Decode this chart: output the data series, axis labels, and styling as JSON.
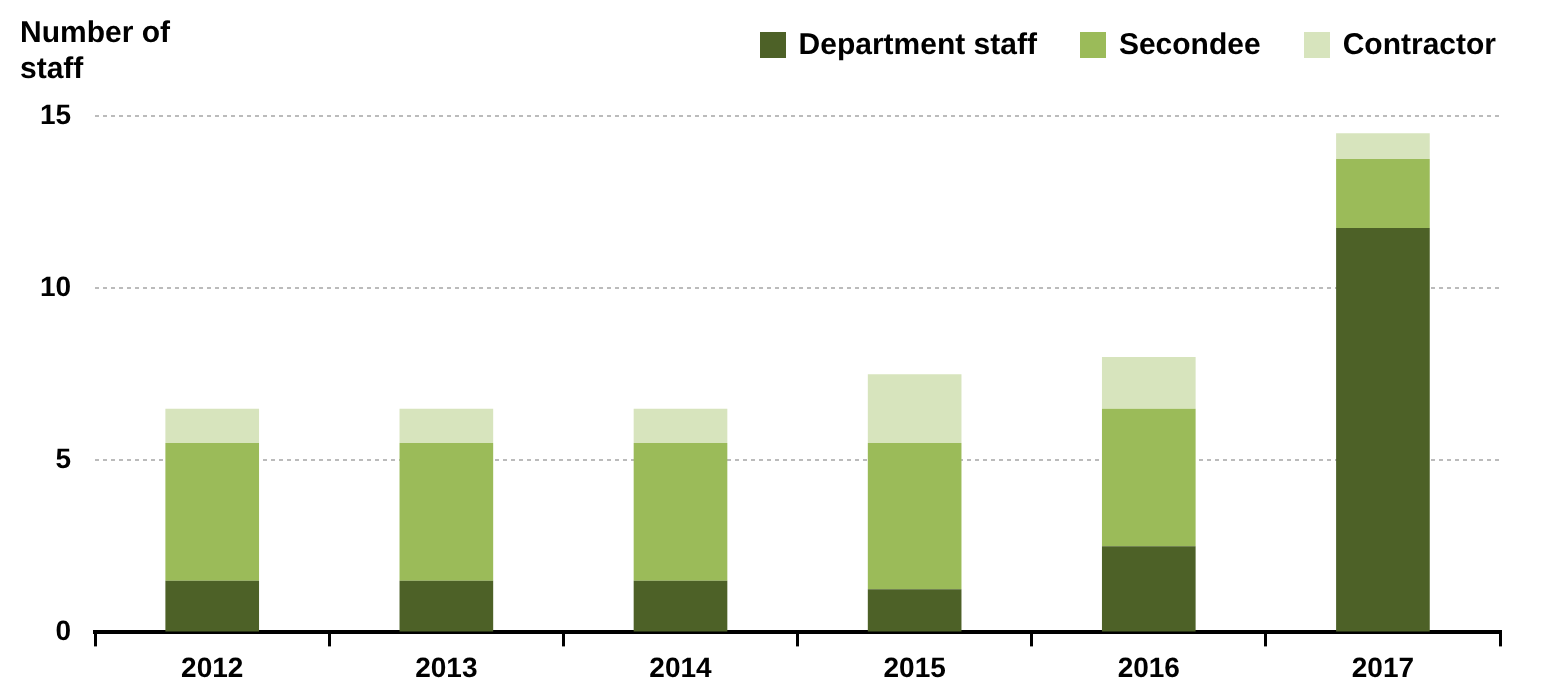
{
  "chart_data": {
    "type": "bar",
    "ylabel": "Number of staff",
    "stacked": true,
    "categories": [
      "2012",
      "2013",
      "2014",
      "2015",
      "2016",
      "2017"
    ],
    "series": [
      {
        "name": "Department staff",
        "color": "#4d6127",
        "values": [
          1.5,
          1.5,
          1.5,
          1.25,
          2.5,
          11.75
        ]
      },
      {
        "name": "Secondee",
        "color": "#9bbb59",
        "values": [
          4,
          4,
          4,
          4.25,
          4,
          2
        ]
      },
      {
        "name": "Contractor",
        "color": "#d7e4bd",
        "values": [
          1,
          1,
          1,
          2,
          1.5,
          0.75
        ]
      }
    ],
    "ylim": [
      0,
      15
    ],
    "yticks": [
      0,
      5,
      10,
      15
    ],
    "grid": "y",
    "legend": "top right"
  }
}
